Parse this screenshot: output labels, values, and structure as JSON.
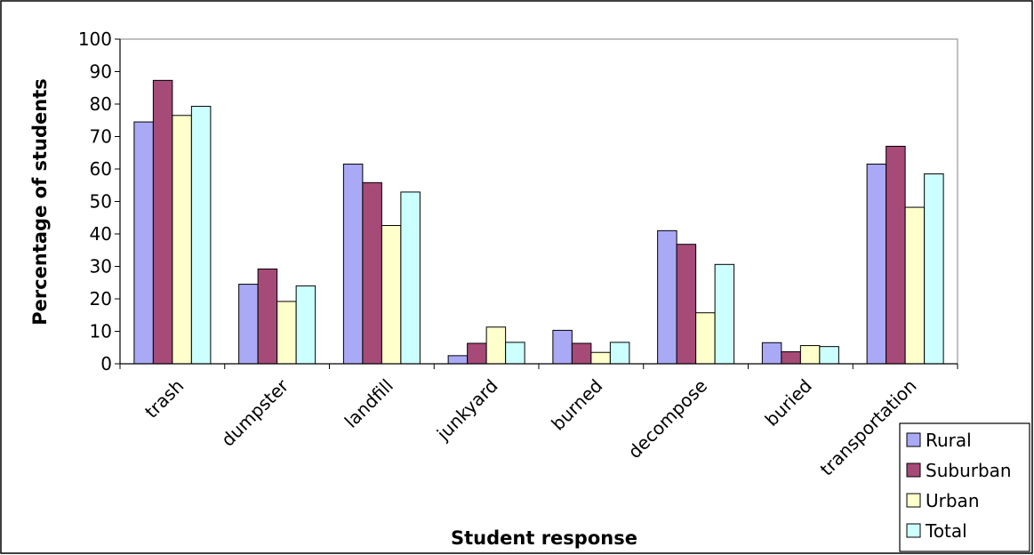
{
  "chart_data": {
    "type": "bar",
    "title": "",
    "xlabel": "Student response",
    "ylabel": "Percentage of students",
    "ylim": [
      0,
      100
    ],
    "yticks": [
      0,
      10,
      20,
      30,
      40,
      50,
      60,
      70,
      80,
      90,
      100
    ],
    "grid": false,
    "legend_position": "bottom-right",
    "categories": [
      "trash",
      "dumpster",
      "landfill",
      "junkyard",
      "burned",
      "decompose",
      "buried",
      "transportation"
    ],
    "series": [
      {
        "name": "Rural",
        "color": "#a9a9f5",
        "values": [
          74.5,
          24.5,
          61.5,
          2.5,
          10.3,
          41.0,
          6.5,
          61.5
        ]
      },
      {
        "name": "Suburban",
        "color": "#a64a78",
        "values": [
          87.3,
          29.2,
          55.8,
          6.3,
          6.3,
          36.8,
          3.7,
          67.0
        ]
      },
      {
        "name": "Urban",
        "color": "#ffffcc",
        "values": [
          76.5,
          19.2,
          42.6,
          11.3,
          3.5,
          15.7,
          5.6,
          48.2
        ]
      },
      {
        "name": "Total",
        "color": "#ccffff",
        "values": [
          79.3,
          24.0,
          52.9,
          6.6,
          6.6,
          30.6,
          5.3,
          58.5
        ]
      }
    ]
  }
}
